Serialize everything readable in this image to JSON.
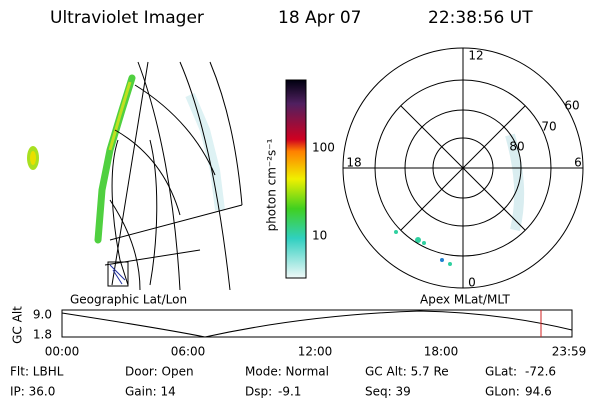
{
  "header": {
    "title": "Ultraviolet Imager",
    "date": "18 Apr 07",
    "time": "22:38:56 UT"
  },
  "colorbar": {
    "label": "photon cm⁻²s⁻¹",
    "ticks": [
      "100",
      "10"
    ]
  },
  "geo_panel": {
    "caption": "Geographic Lat/Lon"
  },
  "polar_panel": {
    "caption": "Apex MLat/MLT",
    "mlt_labels": [
      "12",
      "18",
      "6",
      "0"
    ],
    "lat_labels": [
      "60",
      "70",
      "80"
    ]
  },
  "altitude_plot": {
    "y_label": "GC Alt",
    "y_ticks": [
      "9.0",
      "1.8"
    ],
    "x_ticks": [
      "00:00",
      "06:00",
      "12:00",
      "18:00",
      "23:59"
    ]
  },
  "footer": {
    "rows": [
      [
        "Flt: LBHL",
        "Door: Open",
        "Mode: Normal",
        "GC Alt: 5.7 Re",
        "GLat:",
        "-72.6"
      ],
      [
        "IP: 36.0",
        "Gain: 14",
        "Dsp:",
        "-9.1",
        "Seq: 39",
        "GLon:",
        "94.6"
      ]
    ]
  }
}
